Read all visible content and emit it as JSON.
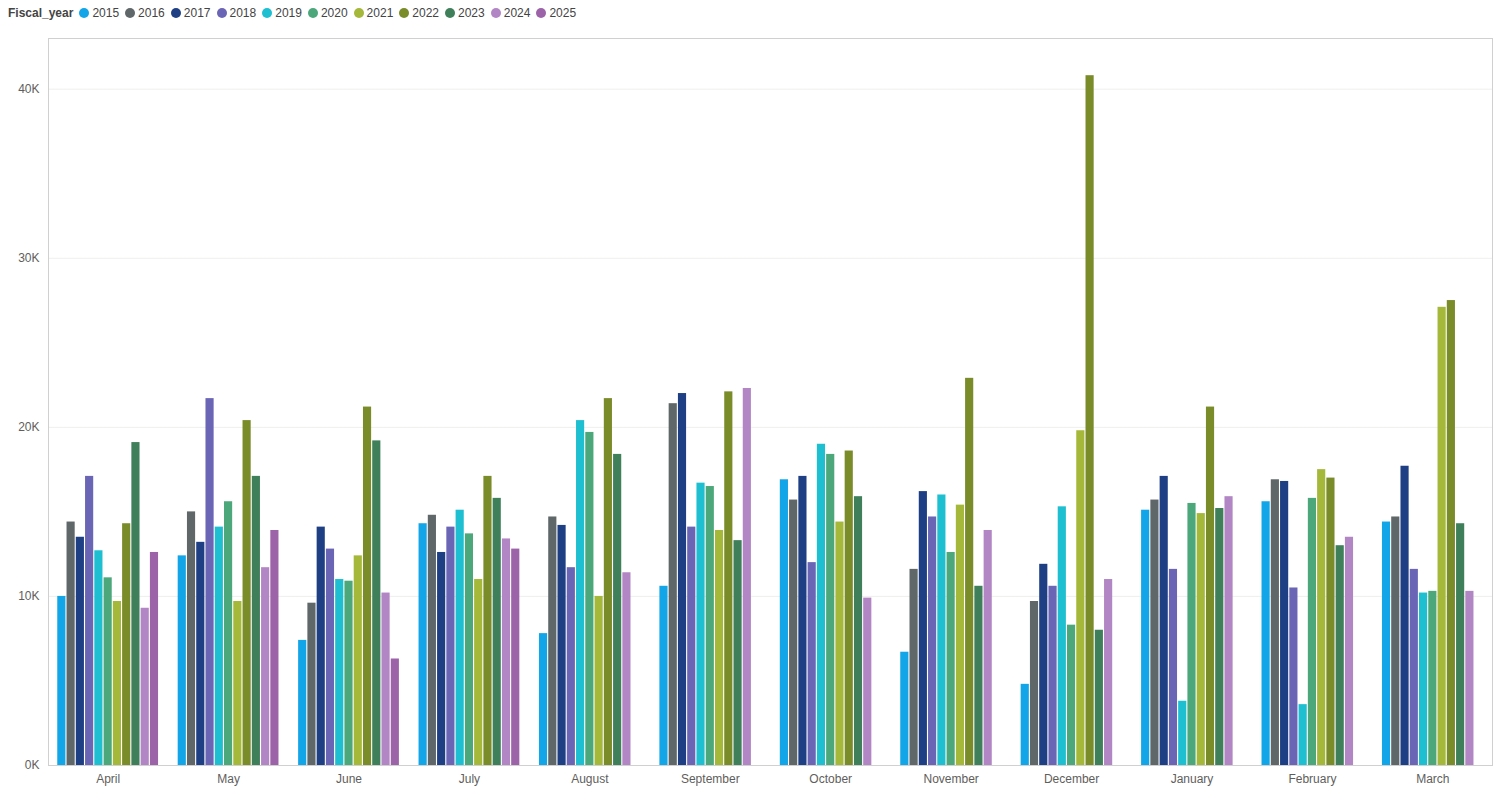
{
  "chart_data": {
    "type": "bar",
    "legend_title": "Fiscal_year",
    "legend": "top-left",
    "grid": true,
    "categories": [
      "April",
      "May",
      "June",
      "July",
      "August",
      "September",
      "October",
      "November",
      "December",
      "January",
      "February",
      "March"
    ],
    "ylim": [
      0,
      43000
    ],
    "yticks": [
      {
        "value": 0,
        "label": "0K"
      },
      {
        "value": 10000,
        "label": "10K"
      },
      {
        "value": 20000,
        "label": "20K"
      },
      {
        "value": 30000,
        "label": "30K"
      },
      {
        "value": 40000,
        "label": "40K"
      }
    ],
    "series": [
      {
        "name": "2015",
        "color": "#12a5e8",
        "values": [
          10000,
          12400,
          7400,
          14300,
          7800,
          10600,
          16900,
          6700,
          4800,
          15100,
          15600,
          14400
        ]
      },
      {
        "name": "2016",
        "color": "#5f6769",
        "values": [
          14400,
          15000,
          9600,
          14800,
          14700,
          21400,
          15700,
          11600,
          9700,
          15700,
          16900,
          14700
        ]
      },
      {
        "name": "2017",
        "color": "#1f3f84",
        "values": [
          13500,
          13200,
          14100,
          12600,
          14200,
          22000,
          17100,
          16200,
          11900,
          17100,
          16800,
          17700
        ]
      },
      {
        "name": "2018",
        "color": "#6b65b5",
        "values": [
          17100,
          21700,
          12800,
          14100,
          11700,
          14100,
          12000,
          14700,
          10600,
          11600,
          10500,
          11600
        ]
      },
      {
        "name": "2019",
        "color": "#1ebfd0",
        "values": [
          12700,
          14100,
          11000,
          15100,
          20400,
          16700,
          19000,
          16000,
          15300,
          3800,
          3600,
          10200
        ]
      },
      {
        "name": "2020",
        "color": "#4ca87a",
        "values": [
          11100,
          15600,
          10900,
          13700,
          19700,
          16500,
          18400,
          12600,
          8300,
          15500,
          15800,
          10300
        ]
      },
      {
        "name": "2021",
        "color": "#a6b83a",
        "values": [
          9700,
          9700,
          12400,
          11000,
          10000,
          13900,
          14400,
          15400,
          19800,
          14900,
          17500,
          27100
        ]
      },
      {
        "name": "2022",
        "color": "#7a8b2a",
        "values": [
          14300,
          20400,
          21200,
          17100,
          21700,
          22100,
          18600,
          22900,
          40800,
          21200,
          17000,
          27500
        ]
      },
      {
        "name": "2023",
        "color": "#3f7f5a",
        "values": [
          19100,
          17100,
          19200,
          15800,
          18400,
          13300,
          15900,
          10600,
          8000,
          15200,
          13000,
          14300
        ]
      },
      {
        "name": "2024",
        "color": "#b286c4",
        "values": [
          9300,
          11700,
          10200,
          13400,
          11400,
          22300,
          9900,
          13900,
          11000,
          15900,
          13500,
          10300
        ]
      },
      {
        "name": "2025",
        "color": "#9c63a8",
        "values": [
          12600,
          13900,
          6300,
          12800,
          null,
          null,
          null,
          null,
          null,
          null,
          null,
          null
        ]
      }
    ]
  }
}
